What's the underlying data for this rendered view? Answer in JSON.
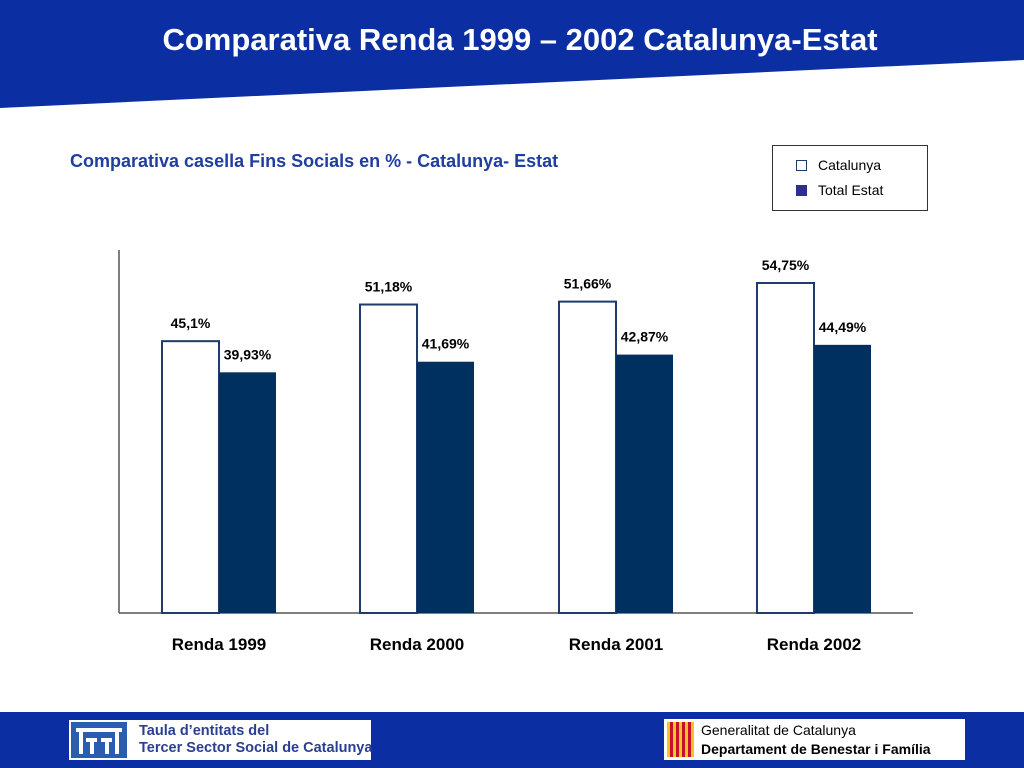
{
  "header": {
    "title": "Comparativa Renda 1999 – 2002 Catalunya-Estat"
  },
  "colors": {
    "header_band": "#0b2fa3",
    "catalunya_fill": "#ffffff",
    "catalunya_border": "#1f3a6b",
    "estat_fill": "#00305f",
    "legend_estat_swatch": "#2d2e8f",
    "axis": "#555555",
    "footer_band": "#0b2fa3"
  },
  "chart_data": {
    "type": "bar",
    "title": "Comparativa casella Fins Socials en % - Catalunya- Estat",
    "categories": [
      "Renda 1999",
      "Renda 2000",
      "Renda 2001",
      "Renda 2002"
    ],
    "series": [
      {
        "name": "Catalunya",
        "values": [
          45.1,
          51.18,
          51.66,
          54.75
        ],
        "labels": [
          "45,1%",
          "51,18%",
          "51,66%",
          "54,75%"
        ]
      },
      {
        "name": "Total Estat",
        "values": [
          39.93,
          41.69,
          42.87,
          44.49
        ],
        "labels": [
          "39,93%",
          "41,69%",
          "42,87%",
          "44,49%"
        ]
      }
    ],
    "xlabel": "",
    "ylabel": "",
    "ylim": [
      0,
      60
    ],
    "grid": false,
    "legend_position": "top-right"
  },
  "legend": {
    "items": [
      {
        "label": "Catalunya",
        "swatch": "catalunya"
      },
      {
        "label": "Total Estat",
        "swatch": "estat"
      }
    ]
  },
  "footer": {
    "left_logo": {
      "line1": "Taula d’entitats del",
      "line2": "Tercer Sector Social de Catalunya"
    },
    "right_logo": {
      "line1": "Generalitat de Catalunya",
      "line2": "Departament de Benestar i Família"
    }
  }
}
